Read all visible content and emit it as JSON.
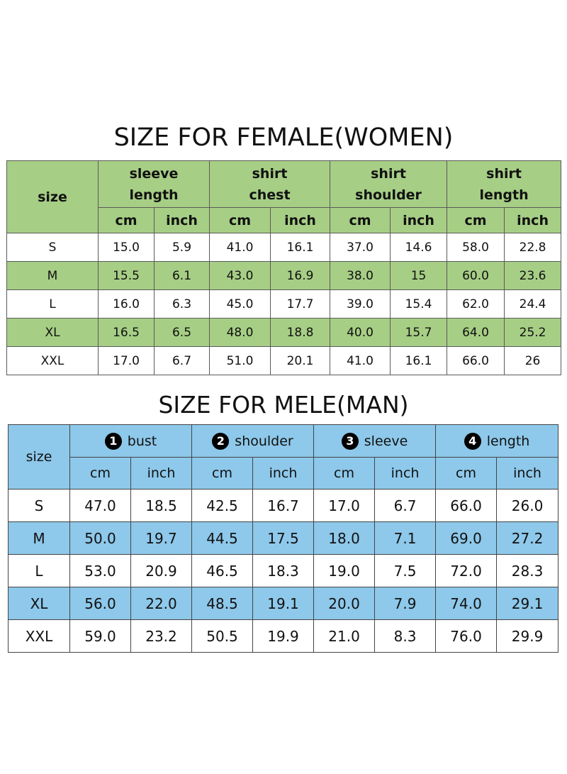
{
  "female": {
    "title": "SIZE FOR FEMALE(WOMEN)",
    "size_header": "size",
    "groups": [
      {
        "line1": "sleeve",
        "line2": "length"
      },
      {
        "line1": "shirt",
        "line2": "chest"
      },
      {
        "line1": "shirt",
        "line2": "shoulder"
      },
      {
        "line1": "shirt",
        "line2": "length"
      }
    ],
    "units": [
      "cm",
      "inch",
      "cm",
      "inch",
      "cm",
      "inch",
      "cm",
      "inch"
    ],
    "rows": [
      {
        "size": "S",
        "values": [
          "15.0",
          "5.9",
          "41.0",
          "16.1",
          "37.0",
          "14.6",
          "58.0",
          "22.8"
        ]
      },
      {
        "size": "M",
        "values": [
          "15.5",
          "6.1",
          "43.0",
          "16.9",
          "38.0",
          "15",
          "60.0",
          "23.6"
        ]
      },
      {
        "size": "L",
        "values": [
          "16.0",
          "6.3",
          "45.0",
          "17.7",
          "39.0",
          "15.4",
          "62.0",
          "24.4"
        ]
      },
      {
        "size": "XL",
        "values": [
          "16.5",
          "6.5",
          "48.0",
          "18.8",
          "40.0",
          "15.7",
          "64.0",
          "25.2"
        ]
      },
      {
        "size": "XXL",
        "values": [
          "17.0",
          "6.7",
          "51.0",
          "20.1",
          "41.0",
          "16.1",
          "66.0",
          "26"
        ]
      }
    ],
    "colors": {
      "header_bg": "#a6ce85",
      "alt_row_bg": "#a6ce85"
    }
  },
  "male": {
    "title": "SIZE FOR MELE(MAN)",
    "size_header": "size",
    "groups": [
      {
        "badge": "1",
        "label": "bust"
      },
      {
        "badge": "2",
        "label": "shoulder"
      },
      {
        "badge": "3",
        "label": "sleeve"
      },
      {
        "badge": "4",
        "label": "length"
      }
    ],
    "units": [
      "cm",
      "inch",
      "cm",
      "inch",
      "cm",
      "inch",
      "cm",
      "inch"
    ],
    "rows": [
      {
        "size": "S",
        "values": [
          "47.0",
          "18.5",
          "42.5",
          "16.7",
          "17.0",
          "6.7",
          "66.0",
          "26.0"
        ]
      },
      {
        "size": "M",
        "values": [
          "50.0",
          "19.7",
          "44.5",
          "17.5",
          "18.0",
          "7.1",
          "69.0",
          "27.2"
        ]
      },
      {
        "size": "L",
        "values": [
          "53.0",
          "20.9",
          "46.5",
          "18.3",
          "19.0",
          "7.5",
          "72.0",
          "28.3"
        ]
      },
      {
        "size": "XL",
        "values": [
          "56.0",
          "22.0",
          "48.5",
          "19.1",
          "20.0",
          "7.9",
          "74.0",
          "29.1"
        ]
      },
      {
        "size": "XXL",
        "values": [
          "59.0",
          "23.2",
          "50.5",
          "19.9",
          "21.0",
          "8.3",
          "76.0",
          "29.9"
        ]
      }
    ],
    "colors": {
      "header_bg": "#8ec8ea",
      "alt_row_bg": "#8ec8ea"
    }
  }
}
